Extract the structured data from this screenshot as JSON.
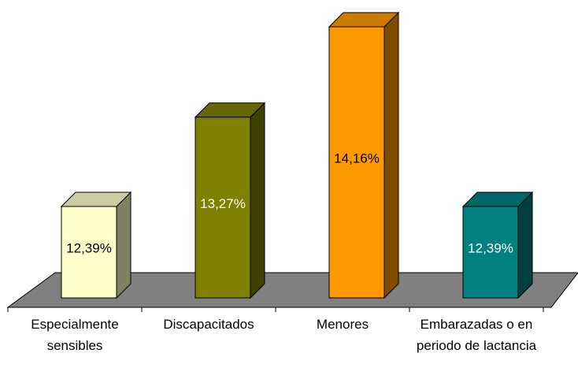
{
  "chart_data": {
    "type": "bar3d",
    "categories": [
      "Especialmente sensibles",
      "Discapacitados",
      "Menores",
      "Embarazadas o en periodo de lactancia"
    ],
    "values": [
      12.39,
      13.27,
      14.16,
      12.39
    ],
    "value_labels": [
      "12,39%",
      "13,27%",
      "14,16%",
      "12,39%"
    ],
    "colors": [
      "#ffffcc",
      "#808000",
      "#ff9900",
      "#008080"
    ]
  }
}
